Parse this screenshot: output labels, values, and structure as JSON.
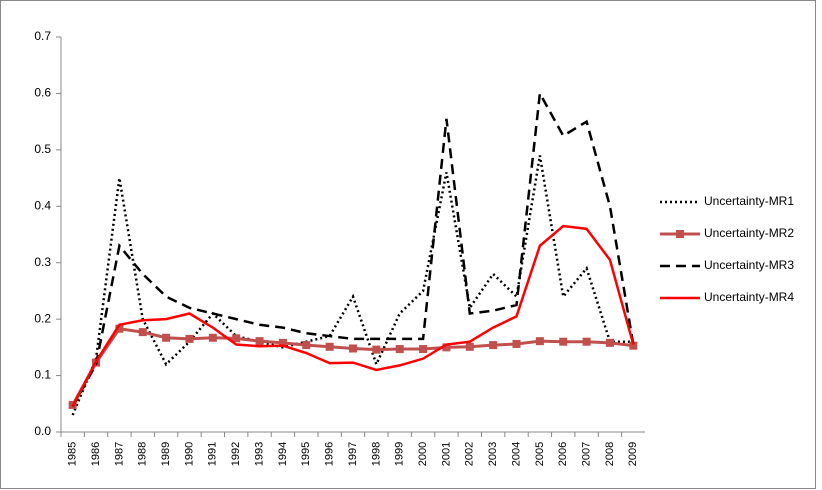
{
  "chart_data": {
    "type": "line",
    "categories": [
      "1985",
      "1986",
      "1987",
      "1988",
      "1989",
      "1990",
      "1991",
      "1992",
      "1993",
      "1994",
      "1995",
      "1996",
      "1997",
      "1998",
      "1999",
      "2000",
      "2001",
      "2002",
      "2003",
      "2004",
      "2005",
      "2006",
      "2007",
      "2008",
      "2009"
    ],
    "series": [
      {
        "name": "Uncertainty-MR1",
        "color": "#000000",
        "style": "dotted",
        "values": [
          0.03,
          0.13,
          0.45,
          0.2,
          0.12,
          0.16,
          0.21,
          0.17,
          0.16,
          0.15,
          0.16,
          0.17,
          0.24,
          0.12,
          0.21,
          0.25,
          0.46,
          0.22,
          0.28,
          0.24,
          0.49,
          0.24,
          0.29,
          0.16,
          0.16
        ]
      },
      {
        "name": "Uncertainty-MR2",
        "color": "#c0504d",
        "style": "marker",
        "values": [
          0.048,
          0.123,
          0.183,
          0.177,
          0.167,
          0.165,
          0.167,
          0.166,
          0.161,
          0.158,
          0.154,
          0.151,
          0.148,
          0.146,
          0.147,
          0.147,
          0.15,
          0.151,
          0.154,
          0.156,
          0.161,
          0.16,
          0.16,
          0.158,
          0.153
        ]
      },
      {
        "name": "Uncertainty-MR3",
        "color": "#000000",
        "style": "dashed",
        "values": [
          0.045,
          0.12,
          0.33,
          0.28,
          0.24,
          0.22,
          0.21,
          0.2,
          0.19,
          0.185,
          0.175,
          0.17,
          0.165,
          0.165,
          0.165,
          0.165,
          0.555,
          0.21,
          0.215,
          0.225,
          0.6,
          0.525,
          0.55,
          0.4,
          0.155
        ]
      },
      {
        "name": "Uncertainty-MR4",
        "color": "#ff0000",
        "style": "solid",
        "values": [
          0.045,
          0.125,
          0.19,
          0.198,
          0.2,
          0.21,
          0.185,
          0.155,
          0.152,
          0.153,
          0.14,
          0.122,
          0.123,
          0.11,
          0.118,
          0.13,
          0.155,
          0.16,
          0.185,
          0.205,
          0.33,
          0.365,
          0.36,
          0.305,
          0.155
        ]
      }
    ],
    "ylim": [
      0,
      0.7
    ],
    "yticks": [
      {
        "value": 0,
        "label": "0.0"
      },
      {
        "value": 0.1,
        "label": "0.1"
      },
      {
        "value": 0.2,
        "label": "0.2"
      },
      {
        "value": 0.3,
        "label": "0.3"
      },
      {
        "value": 0.4,
        "label": "0.4"
      },
      {
        "value": 0.5,
        "label": "0.5"
      },
      {
        "value": 0.6,
        "label": "0.6"
      },
      {
        "value": 0.7,
        "label": "0.7"
      }
    ],
    "legend": "right"
  }
}
